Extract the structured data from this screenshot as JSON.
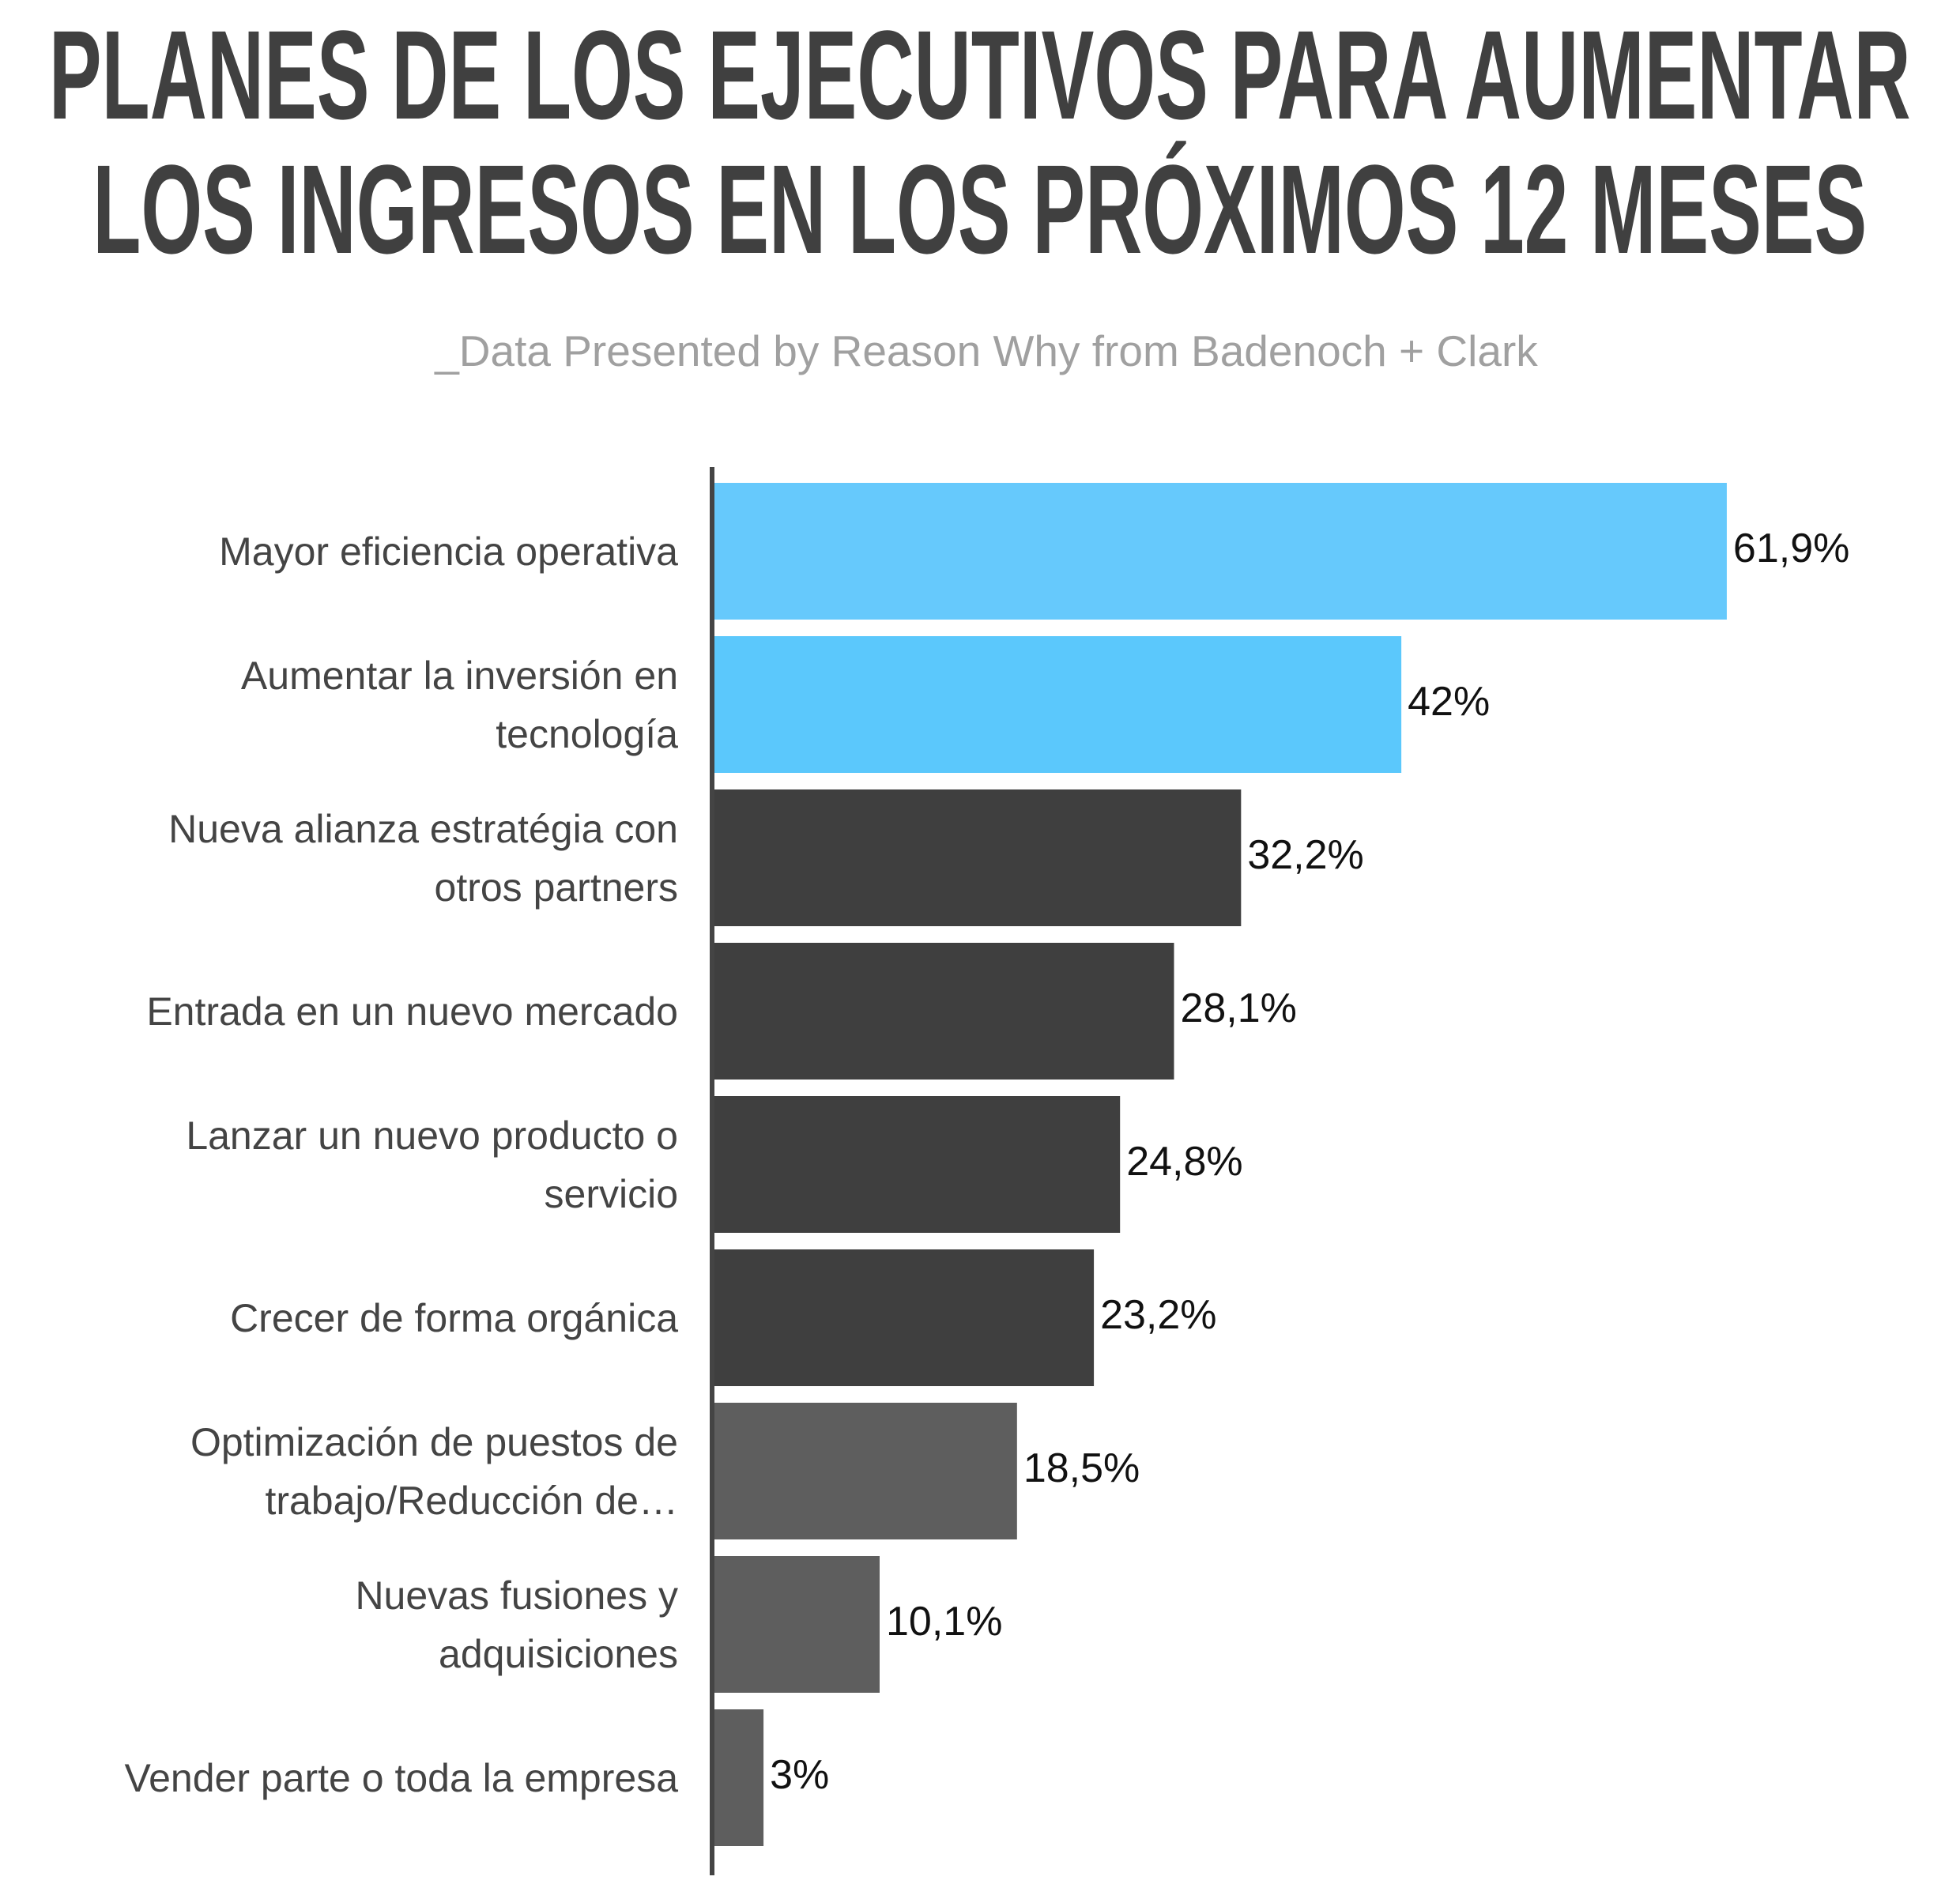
{
  "chart_data": {
    "type": "hbar",
    "title": "PLANES DE LOS EJECUTIVOS PARA AUMENTAR LOS INGRESOS EN LOS PRÓXIMOS 12 MESES",
    "subtitle": "_Data Presented by Reason Why from Badenoch + Clark",
    "categories": [
      "Mayor eficiencia operativa",
      "Aumentar la inversión en tecnología",
      "Nueva alianza estratégia con otros partners",
      "Entrada en un nuevo mercado",
      "Lanzar un nuevo producto o servicio",
      "Crecer de forma orgánica",
      "Optimización de puestos de trabajo/Reducción de…",
      "Nuevas fusiones y adquisiciones",
      "Vender parte o toda la empresa"
    ],
    "values": [
      61.9,
      42,
      32.2,
      28.1,
      24.8,
      23.2,
      18.5,
      10.1,
      3
    ],
    "value_labels": [
      "61,9%",
      "42%",
      "32,2%",
      "28,1%",
      "24,8%",
      "23,2%",
      "18,5%",
      "10,1%",
      "3%"
    ],
    "colors": [
      "#66c9fc",
      "#5bc8fc",
      "#3f3f3f",
      "#3f3f3f",
      "#3f3f3f",
      "#3f3f3f",
      "#5e5e5e",
      "#5e5e5e",
      "#5e5e5e"
    ],
    "xlim": [
      0,
      75
    ]
  }
}
